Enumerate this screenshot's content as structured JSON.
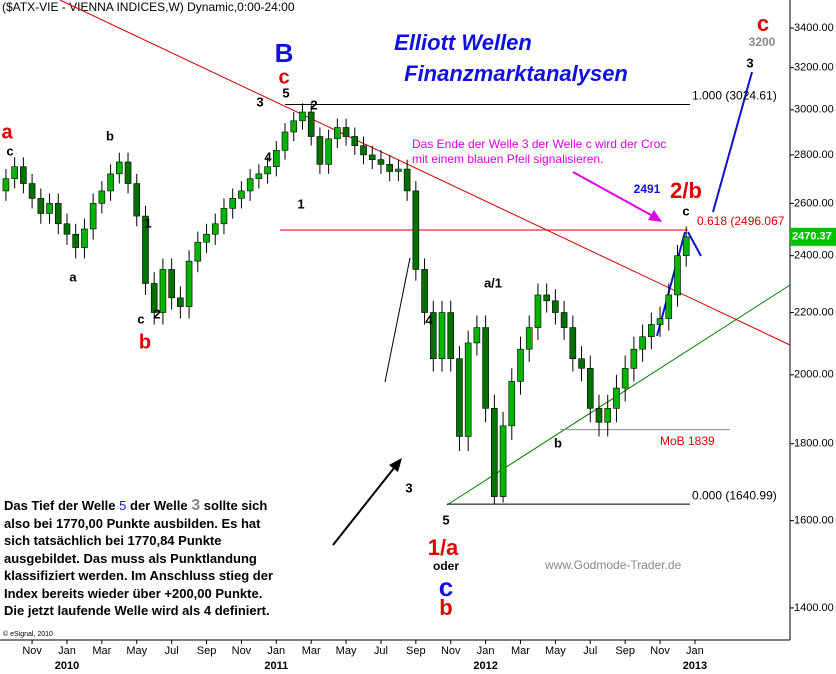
{
  "chart_data": {
    "type": "candlestick",
    "header": "($ATX-VIE - VIENNA INDICES,W) Dynamic,0:00-24:00",
    "title_lines": [
      "Elliott Wellen",
      "Finanzmarktanalysen"
    ],
    "x": [
      -3.5,
      -3,
      -2.5,
      -2,
      -1.5,
      -1,
      -0.5,
      0,
      0.5,
      1,
      1.5,
      2,
      2.5,
      3,
      3.5,
      4,
      4.5,
      5,
      5.5,
      6,
      6.5,
      7,
      7.5,
      8,
      8.5,
      9,
      9.5,
      10,
      10.5,
      11,
      11.5,
      12,
      12.5,
      13,
      13.5,
      14,
      14.5,
      15,
      15.5,
      16,
      16.5,
      17,
      17.5,
      18,
      18.5,
      19,
      19.5,
      20,
      20.5,
      21,
      21.5,
      22,
      22.5,
      23,
      23.5,
      24,
      24.5,
      25,
      25.5,
      26,
      26.5,
      27,
      27.5,
      28,
      28.5,
      29,
      29.5,
      30,
      30.5,
      31,
      31.5,
      32,
      32.5,
      33,
      33.5,
      34,
      34.5,
      35,
      35.5
    ],
    "open": [
      2650,
      2700,
      2750,
      2680,
      2620,
      2560,
      2600,
      2520,
      2480,
      2430,
      2500,
      2600,
      2650,
      2720,
      2770,
      2680,
      2550,
      2300,
      2200,
      2350,
      2250,
      2220,
      2380,
      2450,
      2480,
      2520,
      2580,
      2620,
      2650,
      2700,
      2720,
      2750,
      2820,
      2900,
      2950,
      2990,
      2880,
      2760,
      2870,
      2920,
      2880,
      2840,
      2800,
      2780,
      2760,
      2730,
      2740,
      2650,
      2350,
      2200,
      2050,
      2200,
      2050,
      1820,
      2100,
      2150,
      1900,
      1660,
      1850,
      1980,
      2080,
      2150,
      2260,
      2240,
      2200,
      2150,
      2050,
      2020,
      1900,
      1860,
      1900,
      1960,
      2020,
      2080,
      2120,
      2160,
      2180,
      2260,
      2400
    ],
    "high": [
      2740,
      2790,
      2790,
      2720,
      2660,
      2640,
      2640,
      2560,
      2520,
      2540,
      2640,
      2690,
      2760,
      2810,
      2810,
      2720,
      2590,
      2340,
      2390,
      2390,
      2290,
      2420,
      2490,
      2520,
      2560,
      2620,
      2660,
      2690,
      2740,
      2760,
      2790,
      2860,
      2940,
      2990,
      3030,
      3030,
      2920,
      2910,
      2960,
      2960,
      2920,
      2880,
      2840,
      2820,
      2800,
      2780,
      2780,
      2690,
      2390,
      2240,
      2240,
      2240,
      2090,
      2140,
      2190,
      2190,
      1940,
      1890,
      2020,
      2120,
      2190,
      2300,
      2300,
      2280,
      2240,
      2190,
      2090,
      2060,
      1940,
      1940,
      2000,
      2060,
      2120,
      2160,
      2200,
      2220,
      2300,
      2440,
      2510
    ],
    "low": [
      2610,
      2660,
      2640,
      2580,
      2520,
      2520,
      2480,
      2440,
      2390,
      2390,
      2460,
      2560,
      2610,
      2680,
      2640,
      2510,
      2260,
      2160,
      2160,
      2210,
      2180,
      2180,
      2340,
      2410,
      2440,
      2480,
      2540,
      2580,
      2610,
      2660,
      2680,
      2710,
      2780,
      2860,
      2910,
      2840,
      2720,
      2720,
      2830,
      2840,
      2800,
      2760,
      2740,
      2720,
      2690,
      2690,
      2610,
      2310,
      2160,
      2010,
      2010,
      2010,
      1780,
      1780,
      2060,
      1860,
      1641,
      1645,
      1810,
      1940,
      2040,
      2110,
      2200,
      2160,
      2110,
      2010,
      1980,
      1860,
      1820,
      1820,
      1860,
      1920,
      1980,
      2040,
      2080,
      2120,
      2140,
      2220,
      2360
    ],
    "close": [
      2700,
      2750,
      2680,
      2620,
      2560,
      2600,
      2520,
      2480,
      2430,
      2500,
      2600,
      2650,
      2720,
      2770,
      2680,
      2550,
      2300,
      2200,
      2350,
      2250,
      2220,
      2380,
      2450,
      2480,
      2520,
      2580,
      2620,
      2650,
      2700,
      2720,
      2750,
      2820,
      2900,
      2950,
      2990,
      2880,
      2760,
      2870,
      2920,
      2880,
      2840,
      2800,
      2780,
      2760,
      2730,
      2740,
      2650,
      2350,
      2200,
      2050,
      2200,
      2050,
      1820,
      2100,
      2150,
      1900,
      1660,
      1850,
      1980,
      2080,
      2150,
      2260,
      2240,
      2200,
      2150,
      2050,
      2020,
      1900,
      1860,
      1900,
      1960,
      2020,
      2080,
      2120,
      2160,
      2180,
      2260,
      2400,
      2470
    ],
    "up_color": "#00b400",
    "down_color": "#007000",
    "log_scale": true,
    "ylim": [
      1333,
      3549
    ],
    "yticks": [
      {
        "value": 1400,
        "label": "1400.00"
      },
      {
        "value": 1600,
        "label": "1600.00"
      },
      {
        "value": 1800,
        "label": "1800.00"
      },
      {
        "value": 2000,
        "label": "2000.00"
      },
      {
        "value": 2200,
        "label": "2200.00"
      },
      {
        "value": 2400,
        "label": "2400.00"
      },
      {
        "value": 2600,
        "label": "2600.00"
      },
      {
        "value": 2800,
        "label": "2800.00"
      },
      {
        "value": 3000,
        "label": "3000.00"
      },
      {
        "value": 3200,
        "label": "3200.00"
      },
      {
        "value": 3400,
        "label": "3400.00"
      }
    ],
    "xlim": [
      -3.84,
      41.45
    ],
    "xticks": [
      {
        "value": -2,
        "label": "Nov"
      },
      {
        "value": 0,
        "label": "Jan"
      },
      {
        "value": 2,
        "label": "Mar"
      },
      {
        "value": 4,
        "label": "May"
      },
      {
        "value": 6,
        "label": "Jul"
      },
      {
        "value": 8,
        "label": "Sep"
      },
      {
        "value": 10,
        "label": "Nov"
      },
      {
        "value": 12,
        "label": "Jan"
      },
      {
        "value": 14,
        "label": "Mar"
      },
      {
        "value": 16,
        "label": "May"
      },
      {
        "value": 18,
        "label": "Jul"
      },
      {
        "value": 20,
        "label": "Sep"
      },
      {
        "value": 22,
        "label": "Nov"
      },
      {
        "value": 24,
        "label": "Jan"
      },
      {
        "value": 26,
        "label": "Mar"
      },
      {
        "value": 28,
        "label": "May"
      },
      {
        "value": 30,
        "label": "Jul"
      },
      {
        "value": 32,
        "label": "Sep"
      },
      {
        "value": 34,
        "label": "Nov"
      },
      {
        "value": 36,
        "label": "Jan"
      }
    ],
    "year_labels": [
      {
        "value": 0,
        "label": "2010"
      },
      {
        "value": 12,
        "label": "2011"
      },
      {
        "value": 24,
        "label": "2012"
      },
      {
        "value": 36,
        "label": "2013"
      }
    ],
    "levels": [
      {
        "value": 3024.61,
        "label": "1.000 (3024.61)",
        "color": "#000000"
      },
      {
        "value": 2496.067,
        "label": "0.618 (2496.067",
        "color": "#e00000"
      },
      {
        "value": 1640.99,
        "label": "0.000 (1640.99)",
        "color": "#000000"
      },
      {
        "value": 1839,
        "label": "MoB 1839",
        "color": "#e00000"
      }
    ],
    "last_price": {
      "value": 2470.37,
      "label": "2470.37"
    },
    "wave_labels": [
      "a",
      "c",
      "b",
      "a",
      "1",
      "c",
      "2",
      "b",
      "3",
      "B",
      "c",
      "5",
      "2",
      "4",
      "1",
      "4",
      "a/1",
      "3",
      "5",
      "1/a",
      "oder",
      "c",
      "b",
      "b",
      "2/b",
      "c",
      "2491",
      "c",
      "3200",
      "3"
    ],
    "annotation": [
      "Das Ende der Welle 3 der Welle c wird der Croc",
      "mit einem blauen Pfeil signalisieren."
    ],
    "watermark": "www.Godmode-Trader.de",
    "note_first_line": [
      "Das Tief der Welle",
      "5",
      "der Welle",
      "3",
      "sollte sich"
    ],
    "note_lines": [
      "also bei 1770,00 Punkte ausbilden. Es hat",
      "sich tatsächlich bei 1770,84 Punkte",
      "ausgebildet. Das muss als Punktlandung",
      "klassifiziert werden. Im Anschluss stieg der",
      "Index bereits wieder über +200,00 Punkte.",
      "Die jetzt laufende Welle wird als 4 definiert."
    ],
    "copyright": "© eSignal, 2010"
  }
}
